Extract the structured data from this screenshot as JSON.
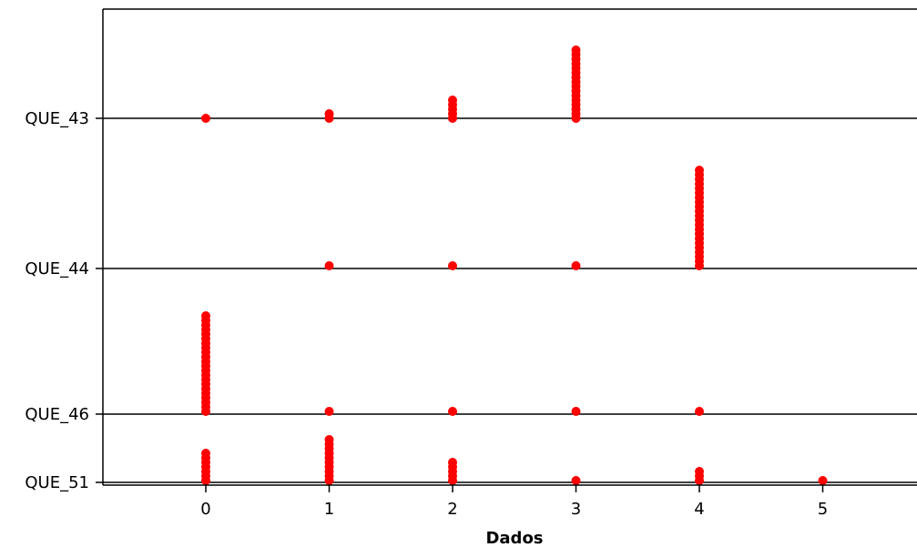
{
  "chart_data": {
    "type": "scatter",
    "xlabel": "Dados",
    "ylabel": "",
    "title": "",
    "xlim": [
      -0.85,
      5.7
    ],
    "xticks": [
      0,
      1,
      2,
      3,
      4,
      5
    ],
    "categories": [
      "QUE_43",
      "QUE_44",
      "QUE_46",
      "QUE_51"
    ],
    "category_baseline_lines": true,
    "grid": false,
    "legend": "none",
    "marker_color": "#ff0000",
    "series": [
      {
        "category": "QUE_43",
        "counts": [
          {
            "x": 0,
            "n": 1
          },
          {
            "x": 1,
            "n": 2
          },
          {
            "x": 2,
            "n": 5
          },
          {
            "x": 3,
            "n": 16
          }
        ]
      },
      {
        "category": "QUE_44",
        "counts": [
          {
            "x": 1,
            "n": 1
          },
          {
            "x": 2,
            "n": 1
          },
          {
            "x": 3,
            "n": 1
          },
          {
            "x": 4,
            "n": 22
          }
        ]
      },
      {
        "category": "QUE_46",
        "counts": [
          {
            "x": 0,
            "n": 22
          },
          {
            "x": 1,
            "n": 1
          },
          {
            "x": 2,
            "n": 1
          },
          {
            "x": 3,
            "n": 1
          },
          {
            "x": 4,
            "n": 1
          }
        ]
      },
      {
        "category": "QUE_51",
        "counts": [
          {
            "x": 0,
            "n": 7
          },
          {
            "x": 1,
            "n": 10
          },
          {
            "x": 2,
            "n": 5
          },
          {
            "x": 3,
            "n": 1
          },
          {
            "x": 4,
            "n": 3
          },
          {
            "x": 5,
            "n": 1
          }
        ]
      }
    ]
  }
}
